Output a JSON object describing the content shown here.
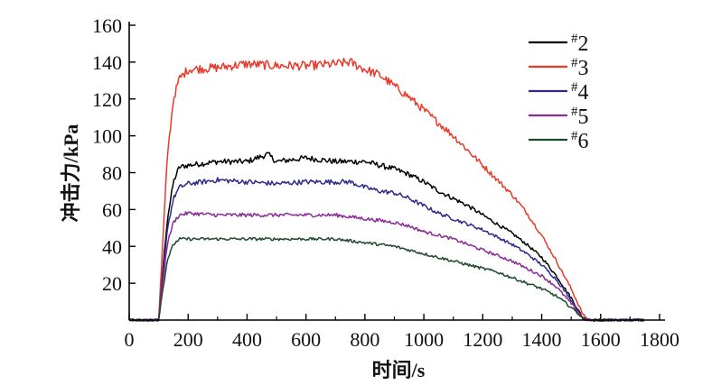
{
  "chart_data": {
    "type": "line",
    "title": "",
    "xlabel": "时间/s",
    "ylabel": "冲击力/kPa",
    "xlim": [
      0,
      1800
    ],
    "ylim": [
      0,
      160
    ],
    "xticks": [
      0,
      200,
      400,
      600,
      800,
      1000,
      1200,
      1400,
      1600,
      1800
    ],
    "yticks": [
      20,
      40,
      60,
      80,
      100,
      120,
      140,
      160
    ],
    "legend_position": "top-right",
    "series": [
      {
        "name": "#2",
        "color": "#000000",
        "x": [
          0,
          50,
          100,
          110,
          130,
          150,
          170,
          200,
          300,
          400,
          470,
          500,
          600,
          700,
          800,
          850,
          900,
          950,
          1000,
          1050,
          1100,
          1150,
          1200,
          1250,
          1300,
          1350,
          1400,
          1450,
          1500,
          1540,
          1560,
          1600,
          1650,
          1700,
          1750
        ],
        "y": [
          0,
          0,
          0,
          20,
          55,
          75,
          83,
          84,
          86,
          86,
          90,
          86,
          88,
          86,
          86,
          84,
          82,
          79,
          75,
          70,
          66,
          62,
          57,
          52,
          47,
          41,
          34,
          24,
          12,
          1,
          0,
          0,
          0,
          0,
          0
        ]
      },
      {
        "name": "#3",
        "color": "#e8392b",
        "x": [
          0,
          50,
          100,
          110,
          130,
          150,
          170,
          200,
          300,
          400,
          500,
          600,
          700,
          750,
          800,
          850,
          900,
          950,
          1000,
          1050,
          1100,
          1150,
          1200,
          1250,
          1300,
          1350,
          1400,
          1450,
          1500,
          1540,
          1560,
          1600,
          1650,
          1700,
          1750
        ],
        "y": [
          0,
          0,
          0,
          30,
          90,
          120,
          131,
          136,
          137,
          139,
          138,
          138,
          139,
          140,
          136,
          133,
          127,
          121,
          114,
          107,
          100,
          92,
          84,
          76,
          68,
          58,
          46,
          32,
          17,
          3,
          0,
          0,
          0,
          0,
          0
        ]
      },
      {
        "name": "#4",
        "color": "#2e2a8c",
        "x": [
          0,
          50,
          100,
          110,
          130,
          150,
          170,
          200,
          300,
          400,
          500,
          600,
          700,
          750,
          800,
          850,
          900,
          950,
          1000,
          1050,
          1100,
          1150,
          1200,
          1250,
          1300,
          1350,
          1400,
          1450,
          1500,
          1540,
          1560,
          1600,
          1650,
          1700,
          1750
        ],
        "y": [
          0,
          0,
          0,
          18,
          50,
          66,
          72,
          74,
          76,
          75,
          74,
          75,
          75,
          75,
          72,
          70,
          69,
          66,
          62,
          58,
          55,
          52,
          49,
          45,
          41,
          36,
          30,
          22,
          11,
          1,
          0,
          0,
          0,
          0,
          0
        ]
      },
      {
        "name": "#5",
        "color": "#8a2b96",
        "x": [
          0,
          50,
          100,
          110,
          130,
          150,
          170,
          200,
          300,
          400,
          500,
          600,
          700,
          800,
          900,
          950,
          1000,
          1050,
          1100,
          1150,
          1200,
          1250,
          1300,
          1350,
          1400,
          1450,
          1500,
          1540,
          1560,
          1600,
          1650,
          1700,
          1750
        ],
        "y": [
          0,
          0,
          0,
          15,
          42,
          53,
          57,
          58,
          57,
          57,
          57,
          57,
          57,
          55,
          53,
          51,
          48,
          46,
          44,
          41,
          38,
          35,
          32,
          28,
          24,
          18,
          9,
          1,
          0,
          0,
          0,
          0,
          0
        ]
      },
      {
        "name": "#6",
        "color": "#1f4a2e",
        "x": [
          0,
          50,
          100,
          110,
          130,
          150,
          170,
          200,
          300,
          400,
          500,
          600,
          700,
          800,
          900,
          950,
          1000,
          1050,
          1100,
          1150,
          1200,
          1250,
          1300,
          1350,
          1400,
          1450,
          1500,
          1540,
          1560,
          1600,
          1650,
          1700,
          1750
        ],
        "y": [
          0,
          0,
          0,
          12,
          33,
          41,
          44,
          44,
          44,
          44,
          44,
          44,
          44,
          42,
          40,
          38,
          36,
          34,
          32,
          30,
          28,
          26,
          23,
          20,
          17,
          13,
          7,
          1,
          0,
          0,
          0,
          0,
          0
        ]
      }
    ]
  }
}
